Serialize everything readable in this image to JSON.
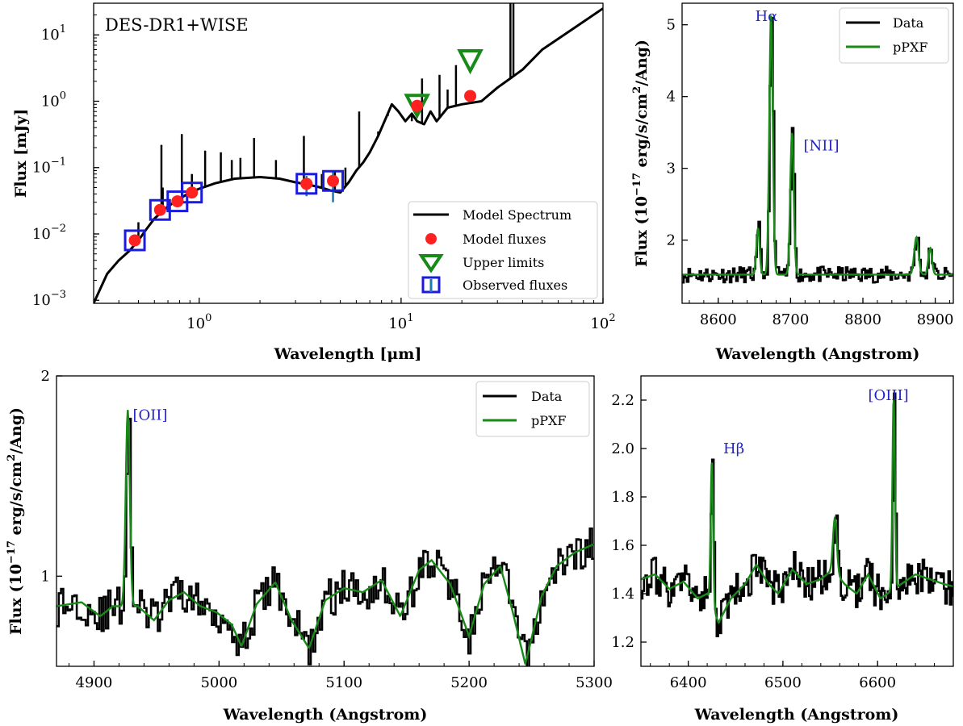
{
  "chart_data": [
    {
      "type": "line",
      "panel": "sed",
      "annotation": "DES-DR1+WISE",
      "xlabel": "Wavelength [μm]",
      "ylabel": "Flux [mJy]",
      "xscale": "log",
      "yscale": "log",
      "xlim": [
        0.3,
        100
      ],
      "ylim": [
        0.0009,
        30
      ],
      "xticks": [
        {
          "v": 1,
          "b": "10",
          "e": "0"
        },
        {
          "v": 10,
          "b": "10",
          "e": "1"
        },
        {
          "v": 100,
          "b": "10",
          "e": "2"
        }
      ],
      "yticks": [
        {
          "v": 0.001,
          "b": "10",
          "e": "−3"
        },
        {
          "v": 0.01,
          "b": "10",
          "e": "−2"
        },
        {
          "v": 0.1,
          "b": "10",
          "e": "−1"
        },
        {
          "v": 1,
          "b": "10",
          "e": "0"
        },
        {
          "v": 10,
          "b": "10",
          "e": "1"
        }
      ],
      "legend": [
        "Model Spectrum",
        "Model fluxes",
        "Upper limits",
        "Observed fluxes"
      ],
      "legend_position": "lower right",
      "model_spectrum": {
        "x": [
          0.3,
          0.35,
          0.4,
          0.45,
          0.5,
          0.55,
          0.6,
          0.7,
          0.8,
          0.9,
          1.0,
          1.2,
          1.5,
          2.0,
          2.5,
          3.0,
          3.5,
          4.0,
          4.5,
          5.0,
          5.5,
          6.0,
          6.5,
          7.0,
          7.7,
          8.5,
          9.0,
          9.7,
          10.5,
          11.3,
          12.0,
          13.0,
          14.0,
          15.0,
          17.0,
          20.0,
          25.0,
          30.0,
          40.0,
          50.0,
          70.0,
          100.0
        ],
        "y": [
          0.0009,
          0.0025,
          0.004,
          0.0055,
          0.008,
          0.012,
          0.017,
          0.026,
          0.034,
          0.042,
          0.048,
          0.058,
          0.068,
          0.072,
          0.068,
          0.06,
          0.055,
          0.05,
          0.045,
          0.042,
          0.06,
          0.09,
          0.12,
          0.17,
          0.3,
          0.6,
          0.9,
          0.7,
          0.5,
          0.65,
          0.5,
          0.45,
          0.7,
          0.5,
          0.8,
          0.9,
          1.0,
          1.6,
          3.0,
          6.0,
          12.0,
          25.0
        ]
      },
      "model_spectrum_lines": [
        {
          "x": 0.65,
          "y": 0.22
        },
        {
          "x": 0.5,
          "y": 0.015
        },
        {
          "x": 0.66,
          "y": 0.05
        },
        {
          "x": 0.82,
          "y": 0.32
        },
        {
          "x": 0.92,
          "y": 0.08
        },
        {
          "x": 1.07,
          "y": 0.18
        },
        {
          "x": 1.28,
          "y": 0.17
        },
        {
          "x": 1.45,
          "y": 0.13
        },
        {
          "x": 1.6,
          "y": 0.14
        },
        {
          "x": 1.87,
          "y": 0.28
        },
        {
          "x": 2.4,
          "y": 0.13
        },
        {
          "x": 3.3,
          "y": 0.3
        },
        {
          "x": 4.05,
          "y": 0.08
        },
        {
          "x": 4.7,
          "y": 0.09
        },
        {
          "x": 5.3,
          "y": 0.1
        },
        {
          "x": 6.2,
          "y": 0.7
        },
        {
          "x": 7.7,
          "y": 0.35
        },
        {
          "x": 8.6,
          "y": 0.6
        },
        {
          "x": 11.3,
          "y": 0.5
        },
        {
          "x": 12.7,
          "y": 2.2
        },
        {
          "x": 15.5,
          "y": 2.5
        },
        {
          "x": 17.0,
          "y": 1.5
        },
        {
          "x": 18.7,
          "y": 3.5
        },
        {
          "x": 34.8,
          "y": 30
        },
        {
          "x": 36.0,
          "y": 30
        }
      ],
      "model_fluxes": {
        "x": [
          0.48,
          0.64,
          0.78,
          0.92,
          3.4,
          4.6,
          12.0,
          22.0
        ],
        "y": [
          0.008,
          0.023,
          0.031,
          0.042,
          0.057,
          0.063,
          0.85,
          1.2
        ]
      },
      "upper_limits": {
        "x": [
          12.0,
          22.0
        ],
        "y": [
          0.85,
          4.0
        ]
      },
      "observed_fluxes": {
        "x": [
          0.48,
          0.64,
          0.78,
          0.92,
          3.4,
          4.6
        ],
        "y": [
          0.008,
          0.023,
          0.031,
          0.042,
          0.057,
          0.063
        ],
        "err_lo": [
          0.007,
          0.019,
          0.027,
          0.037,
          0.037,
          0.03
        ],
        "err_hi": [
          0.009,
          0.027,
          0.035,
          0.047,
          0.075,
          0.09
        ]
      }
    },
    {
      "type": "line",
      "panel": "halpha",
      "xlabel": "Wavelength (Angstrom)",
      "ylabel": "Flux (10−17 erg/s/cm2/Ang)",
      "xlim": [
        8550,
        8925
      ],
      "ylim": [
        1.12,
        5.3
      ],
      "xticks": [
        8600,
        8700,
        8800,
        8900
      ],
      "yticks": [
        2,
        3,
        4,
        5
      ],
      "legend": [
        "Data",
        "pPXF"
      ],
      "legend_position": "upper right",
      "annotations": [
        {
          "text": "Hα",
          "x": 8651,
          "y": 5.05
        },
        {
          "text": "[NII]",
          "x": 8718,
          "y": 3.25
        }
      ],
      "continuum": 1.52,
      "lines": [
        {
          "c": 8655,
          "a": 0.65,
          "s": 2.2
        },
        {
          "c": 8673,
          "a": 3.62,
          "s": 2.4
        },
        {
          "c": 8702,
          "a": 1.98,
          "s": 2.4
        },
        {
          "c": 8874,
          "a": 0.52,
          "s": 3.0
        },
        {
          "c": 8893,
          "a": 0.37,
          "s": 2.5
        }
      ]
    },
    {
      "type": "line",
      "panel": "oii",
      "xlabel": "Wavelength (Angstrom)",
      "ylabel": "Flux (10−17 erg/s/cm2/Ang)",
      "xlim": [
        4870,
        5300
      ],
      "ylim": [
        0.55,
        2.0
      ],
      "xticks": [
        4900,
        5000,
        5100,
        5200,
        5300
      ],
      "yticks": [
        1,
        2
      ],
      "legend": [
        "Data",
        "pPXF"
      ],
      "legend_position": "upper right",
      "annotations": [
        {
          "text": "[OII]",
          "x": 4931,
          "y": 1.78
        }
      ],
      "continuum_points": [
        [
          4870,
          0.85
        ],
        [
          4890,
          0.87
        ],
        [
          4905,
          0.8
        ],
        [
          4915,
          0.85
        ],
        [
          4935,
          0.85
        ],
        [
          4948,
          0.78
        ],
        [
          4960,
          0.88
        ],
        [
          4972,
          0.92
        ],
        [
          4985,
          0.85
        ],
        [
          4998,
          0.82
        ],
        [
          5010,
          0.76
        ],
        [
          5018,
          0.65
        ],
        [
          5030,
          0.86
        ],
        [
          5045,
          0.97
        ],
        [
          5058,
          0.78
        ],
        [
          5072,
          0.64
        ],
        [
          5085,
          0.88
        ],
        [
          5100,
          0.94
        ],
        [
          5115,
          0.92
        ],
        [
          5130,
          0.98
        ],
        [
          5145,
          0.8
        ],
        [
          5160,
          1.03
        ],
        [
          5170,
          1.08
        ],
        [
          5185,
          0.96
        ],
        [
          5200,
          0.7
        ],
        [
          5212,
          0.96
        ],
        [
          5225,
          1.05
        ],
        [
          5235,
          0.82
        ],
        [
          5245,
          0.56
        ],
        [
          5258,
          0.9
        ],
        [
          5270,
          1.05
        ],
        [
          5285,
          1.12
        ],
        [
          5300,
          1.16
        ]
      ],
      "lines": [
        {
          "c": 4927,
          "a": 0.98,
          "s": 1.6
        }
      ]
    },
    {
      "type": "line",
      "panel": "hbeta",
      "xlabel": "Wavelength (Angstrom)",
      "ylabel": "",
      "xlim": [
        6350,
        6680
      ],
      "ylim": [
        1.1,
        2.3
      ],
      "xticks": [
        6400,
        6500,
        6600
      ],
      "yticks": [
        1.2,
        1.4,
        1.6,
        1.8,
        2.0,
        2.2
      ],
      "annotations": [
        {
          "text": "Hβ",
          "x": 6437,
          "y": 1.98
        },
        {
          "text": "[OIII]",
          "x": 6590,
          "y": 2.2
        }
      ],
      "continuum_points": [
        [
          6350,
          1.46
        ],
        [
          6365,
          1.48
        ],
        [
          6380,
          1.42
        ],
        [
          6395,
          1.45
        ],
        [
          6410,
          1.38
        ],
        [
          6420,
          1.4
        ],
        [
          6432,
          1.28
        ],
        [
          6445,
          1.38
        ],
        [
          6460,
          1.44
        ],
        [
          6472,
          1.52
        ],
        [
          6485,
          1.44
        ],
        [
          6495,
          1.4
        ],
        [
          6510,
          1.5
        ],
        [
          6525,
          1.44
        ],
        [
          6540,
          1.46
        ],
        [
          6553,
          1.5
        ],
        [
          6565,
          1.44
        ],
        [
          6578,
          1.4
        ],
        [
          6590,
          1.48
        ],
        [
          6603,
          1.38
        ],
        [
          6625,
          1.44
        ],
        [
          6640,
          1.48
        ],
        [
          6655,
          1.46
        ],
        [
          6670,
          1.44
        ],
        [
          6680,
          1.43
        ]
      ],
      "lines": [
        {
          "c": 6425,
          "a": 0.6,
          "s": 1.3
        },
        {
          "c": 6555,
          "a": 0.22,
          "s": 2.0
        },
        {
          "c": 6617,
          "a": 0.79,
          "s": 1.3
        }
      ]
    }
  ]
}
